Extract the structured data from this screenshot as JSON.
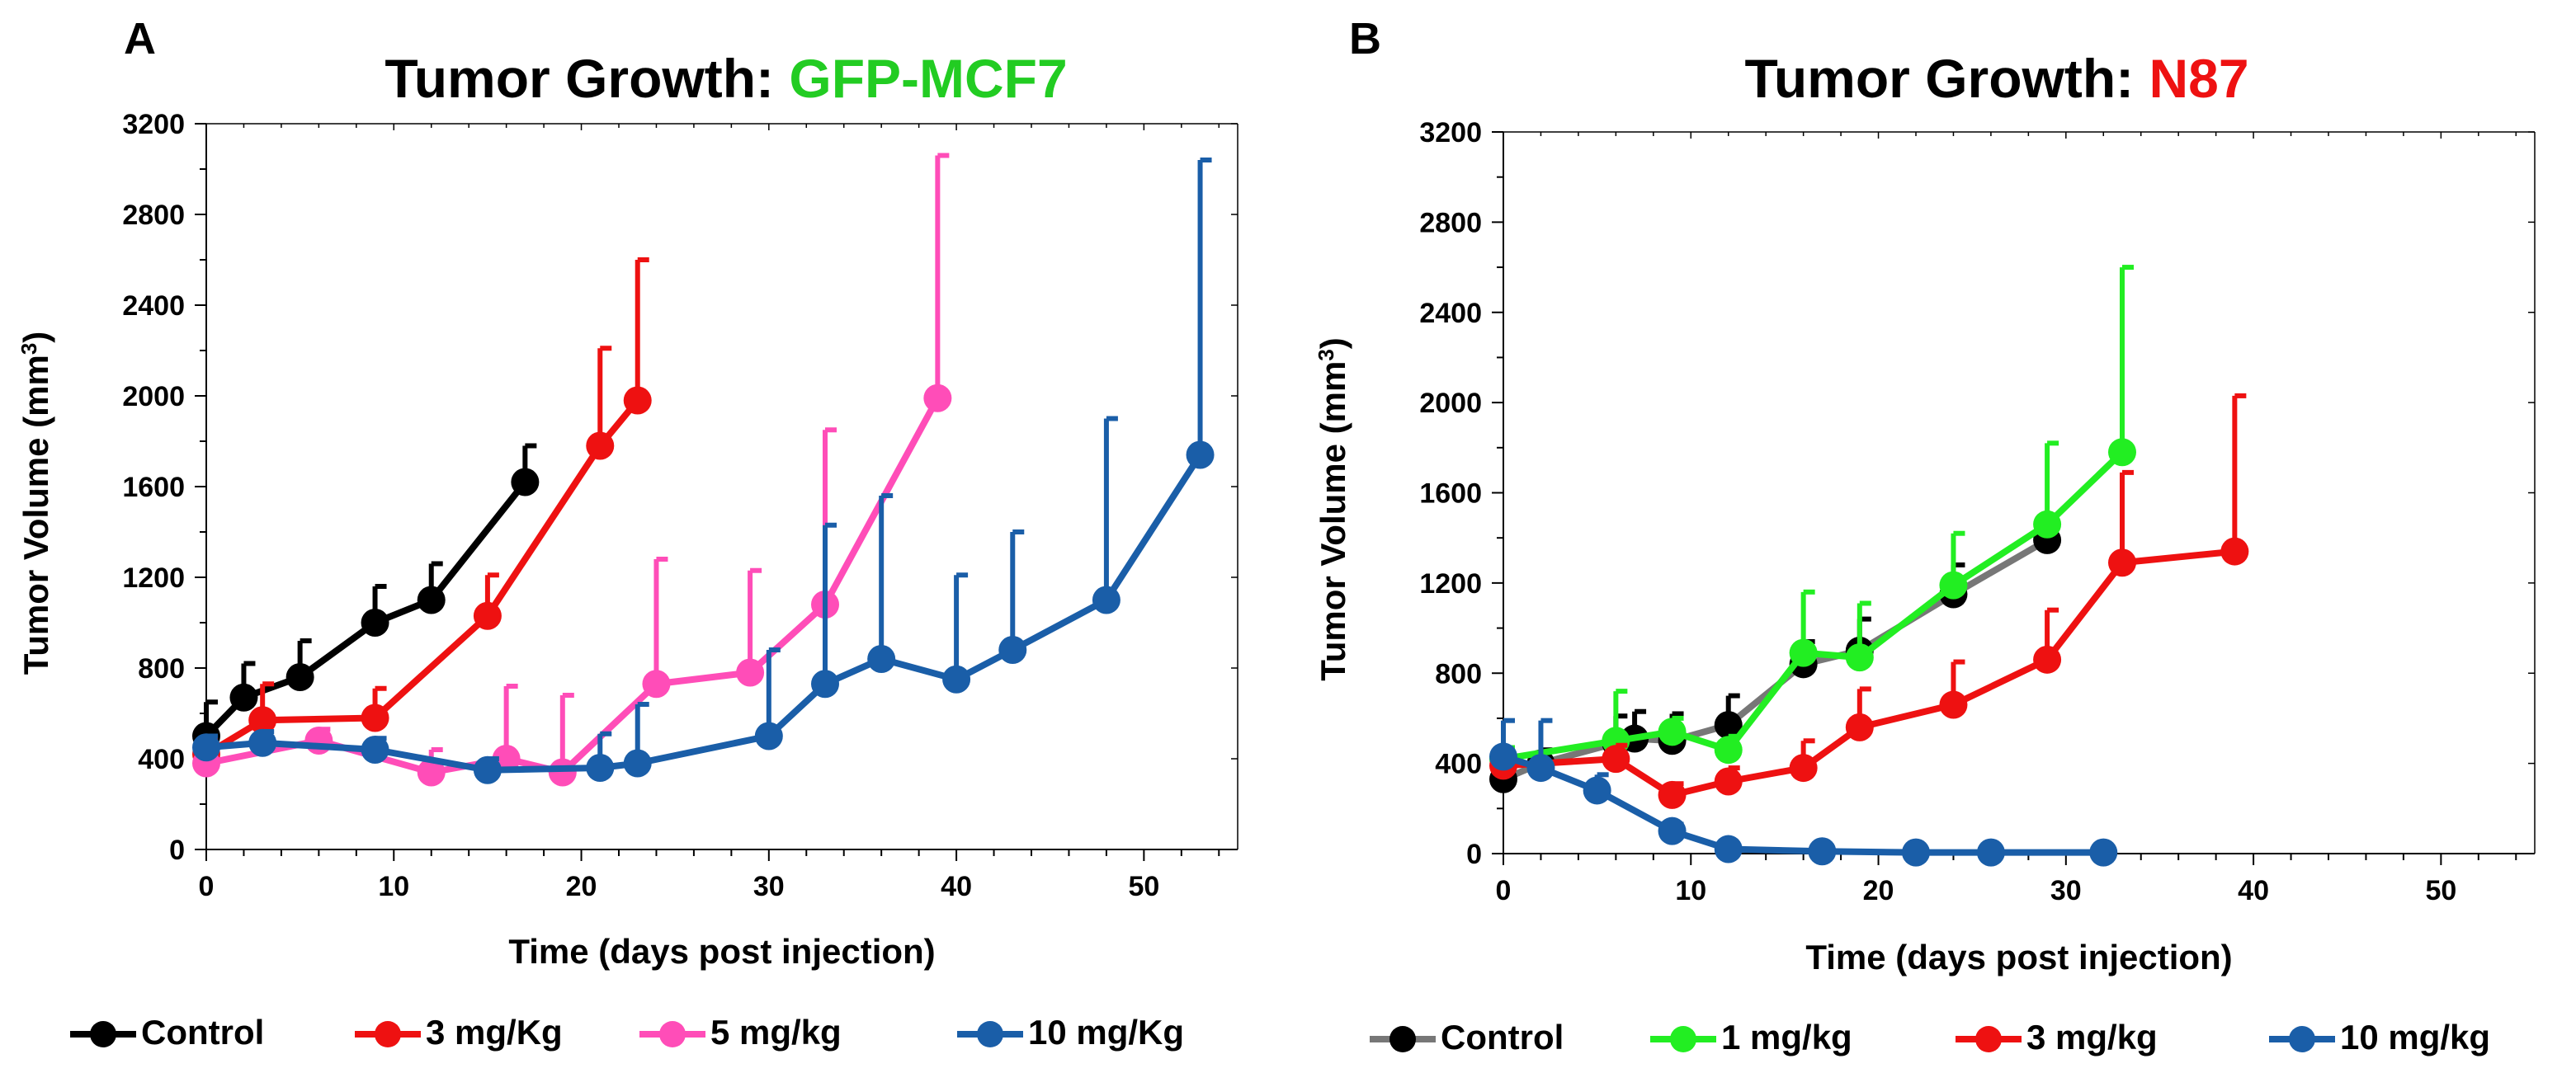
{
  "chart_data": [
    {
      "type": "line",
      "panel_label": "A",
      "title_prefix": "Tumor Growth: ",
      "title_highlight": "GFP-MCF7",
      "title_highlight_color": "#22cc22",
      "xlabel": "Time (days post injection)",
      "ylabel": "Tumor Volume (mm",
      "ylabel_sup": "3",
      "ylabel_suffix": ")",
      "xlim": [
        0,
        55
      ],
      "ylim": [
        0,
        3200
      ],
      "xticks": [
        0,
        10,
        20,
        30,
        40,
        50
      ],
      "yticks": [
        0,
        400,
        800,
        1200,
        1600,
        2000,
        2400,
        2800,
        3200
      ],
      "series": [
        {
          "name": "Control",
          "color": "#000000",
          "x": [
            0,
            2,
            5,
            9,
            12,
            17
          ],
          "y": [
            500,
            670,
            760,
            1000,
            1100,
            1620
          ],
          "err": [
            150,
            150,
            160,
            160,
            160,
            160
          ]
        },
        {
          "name": "3 mg/Kg",
          "color": "#ee1111",
          "x": [
            0,
            3,
            9,
            15,
            21,
            23
          ],
          "y": [
            420,
            570,
            580,
            1030,
            1780,
            1980
          ],
          "err": [
            60,
            160,
            130,
            180,
            430,
            620
          ]
        },
        {
          "name": "5 mg/kg",
          "color": "#ff4db8",
          "x": [
            0,
            6,
            12,
            16,
            19,
            24,
            29,
            33,
            39
          ],
          "y": [
            380,
            480,
            340,
            400,
            340,
            730,
            780,
            1080,
            1990
          ],
          "err": [
            50,
            50,
            100,
            320,
            340,
            550,
            450,
            770,
            1070
          ]
        },
        {
          "name": "10 mg/Kg",
          "color": "#1a5ea8",
          "x": [
            0,
            3,
            9,
            15,
            21,
            23,
            30,
            33,
            36,
            40,
            43,
            48,
            53
          ],
          "y": [
            450,
            470,
            440,
            350,
            360,
            380,
            500,
            730,
            840,
            750,
            880,
            1100,
            1740
          ],
          "err": [
            50,
            50,
            50,
            50,
            150,
            260,
            380,
            700,
            720,
            460,
            520,
            800,
            1300
          ]
        }
      ]
    },
    {
      "type": "line",
      "panel_label": "B",
      "title_prefix": "Tumor Growth: ",
      "title_highlight": "N87",
      "title_highlight_color": "#ee1111",
      "xlabel": "Time (days post injection)",
      "ylabel": "Tumor Volume (mm",
      "ylabel_sup": "3",
      "ylabel_suffix": ")",
      "xlim": [
        0,
        55
      ],
      "ylim": [
        0,
        3200
      ],
      "xticks": [
        0,
        10,
        20,
        30,
        40,
        50
      ],
      "yticks": [
        0,
        400,
        800,
        1200,
        1600,
        2000,
        2400,
        2800,
        3200
      ],
      "series": [
        {
          "name": "Control",
          "color": "#000000",
          "line_color": "#777777",
          "x": [
            0,
            2,
            6,
            7,
            9,
            12,
            16,
            19,
            24,
            29
          ],
          "y": [
            330,
            400,
            490,
            510,
            500,
            570,
            840,
            900,
            1150,
            1390
          ],
          "err": [
            60,
            60,
            120,
            120,
            120,
            130,
            100,
            140,
            130,
            60
          ]
        },
        {
          "name": "1 mg/kg",
          "color": "#22ee22",
          "x": [
            0,
            6,
            9,
            12,
            16,
            19,
            24,
            29,
            33
          ],
          "y": [
            420,
            500,
            540,
            460,
            890,
            870,
            1190,
            1460,
            1780
          ],
          "err": [
            50,
            220,
            60,
            60,
            270,
            240,
            230,
            360,
            820
          ]
        },
        {
          "name": "3 mg/kg",
          "color": "#ee1111",
          "x": [
            0,
            6,
            9,
            12,
            16,
            19,
            24,
            29,
            33,
            39
          ],
          "y": [
            390,
            420,
            260,
            320,
            380,
            560,
            660,
            860,
            1290,
            1340
          ],
          "err": [
            50,
            60,
            50,
            60,
            120,
            170,
            190,
            220,
            400,
            690
          ]
        },
        {
          "name": "10 mg/kg",
          "color": "#1a5ea8",
          "x": [
            0,
            2,
            5,
            9,
            12,
            17,
            22,
            26,
            32
          ],
          "y": [
            430,
            380,
            280,
            100,
            20,
            10,
            5,
            5,
            5
          ],
          "err": [
            160,
            210,
            70,
            30,
            10,
            0,
            0,
            0,
            0
          ]
        }
      ]
    }
  ]
}
